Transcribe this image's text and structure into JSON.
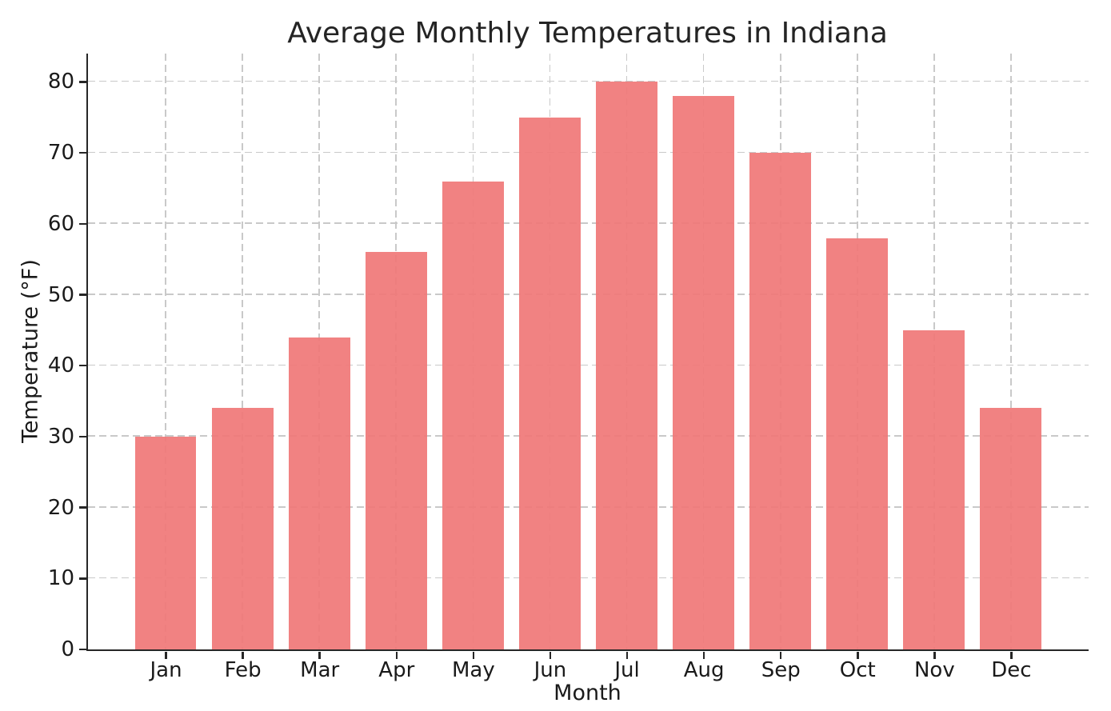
{
  "chart_data": {
    "type": "bar",
    "title": "Average Monthly Temperatures in Indiana",
    "xlabel": "Month",
    "ylabel": "Temperature (°F)",
    "categories": [
      "Jan",
      "Feb",
      "Mar",
      "Apr",
      "May",
      "Jun",
      "Jul",
      "Aug",
      "Sep",
      "Oct",
      "Nov",
      "Dec"
    ],
    "values": [
      30,
      34,
      44,
      56,
      66,
      75,
      80,
      78,
      70,
      58,
      45,
      34
    ],
    "yticks": [
      0,
      10,
      20,
      30,
      40,
      50,
      60,
      70,
      80
    ],
    "ylim": [
      0,
      84
    ],
    "grid": true,
    "legend": "none",
    "colors": {
      "bar_fill": "rgba(240,120,120,0.93)",
      "grid_line": "#c9c9c9",
      "axis_spine": "#262626",
      "text": "#1a1a1a",
      "background": "#ffffff"
    }
  }
}
